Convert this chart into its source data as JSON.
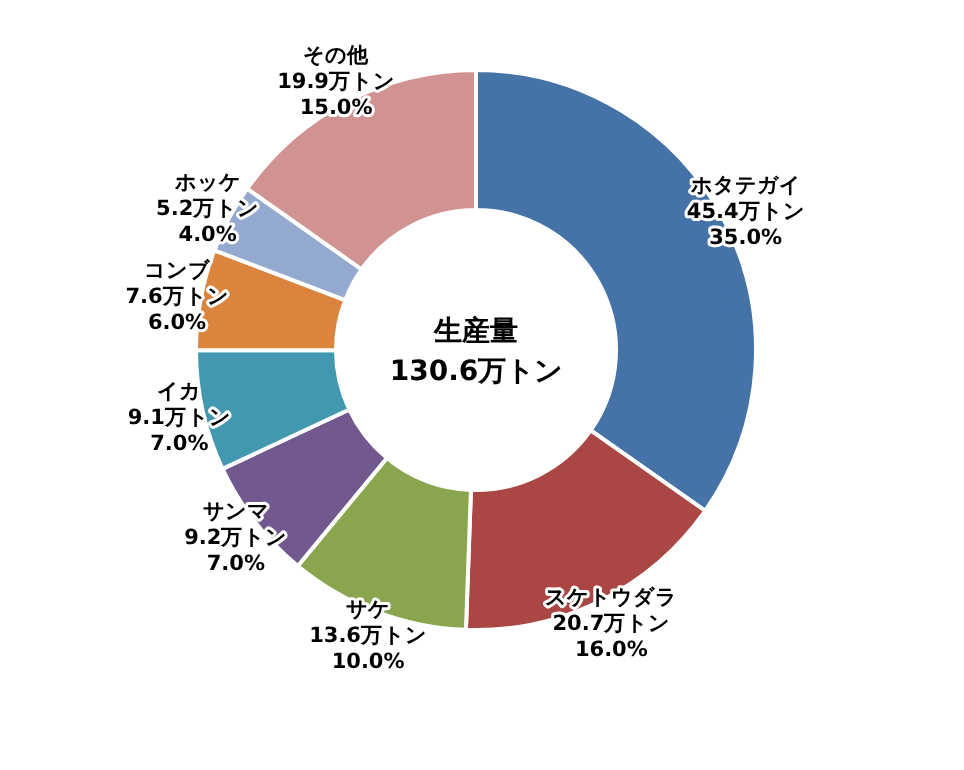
{
  "chart_data": {
    "type": "donut",
    "categories": [
      "ホタテガイ",
      "スケトウダラ",
      "サケ",
      "サンマ",
      "イカ",
      "コンブ",
      "ホッケ",
      "その他"
    ],
    "values": [
      45.4,
      20.7,
      13.6,
      9.2,
      9.1,
      7.6,
      5.2,
      19.9
    ],
    "colors": [
      "#4572a7",
      "#aa4643",
      "#89a54e",
      "#71588f",
      "#4198af",
      "#db843d",
      "#93a9cf",
      "#d19392"
    ],
    "value_labels": [
      "45.4万トン\n35.0%",
      "20.7万トン\n16.0%",
      "13.6万トン\n10.0%",
      "9.2万トン\n7.0%",
      "9.1万トン\n7.0%",
      "7.6万トン\n6.0%",
      "5.2万トン\n4.0%",
      "19.9万トン\n15.0%"
    ],
    "annotations": [
      "生産量",
      "130.6万トン"
    ],
    "legend": false
  }
}
